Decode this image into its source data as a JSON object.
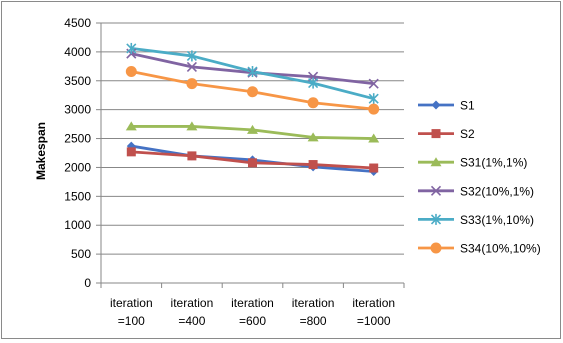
{
  "chart_data": {
    "type": "line",
    "title": "",
    "xlabel": "",
    "ylabel": "Makespan",
    "ylim": [
      0,
      4500
    ],
    "ytick_step": 500,
    "grid": "horizontal",
    "legend_position": "right",
    "categories": [
      [
        "iteration",
        "=100"
      ],
      [
        "iteration",
        "=400"
      ],
      [
        "iteration",
        "=600"
      ],
      [
        "iteration",
        "=800"
      ],
      [
        "iteration",
        "=1000"
      ]
    ],
    "series": [
      {
        "name": "S1",
        "color": "#4572C4",
        "marker": "diamond",
        "values": [
          2370,
          2200,
          2130,
          2010,
          1930
        ]
      },
      {
        "name": "S2",
        "color": "#C0504D",
        "marker": "square",
        "values": [
          2270,
          2200,
          2080,
          2050,
          1990
        ]
      },
      {
        "name": "S31(1%,1%)",
        "color": "#9BBB59",
        "marker": "triangle",
        "values": [
          2710,
          2710,
          2650,
          2520,
          2500
        ]
      },
      {
        "name": "S32(10%,1%)",
        "color": "#8064A2",
        "marker": "x",
        "values": [
          3970,
          3740,
          3640,
          3570,
          3450
        ]
      },
      {
        "name": "S33(1%,10%)",
        "color": "#4BACC6",
        "marker": "star",
        "values": [
          4060,
          3930,
          3660,
          3460,
          3190
        ]
      },
      {
        "name": "S34(10%,10%)",
        "color": "#F79646",
        "marker": "circle",
        "values": [
          3660,
          3450,
          3310,
          3120,
          3010
        ]
      }
    ]
  }
}
